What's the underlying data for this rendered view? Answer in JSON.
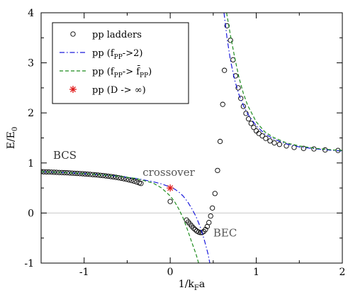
{
  "chart_data": {
    "type": "line",
    "xlabel": "1/k_Fa",
    "ylabel": "E/E_0",
    "xlim": [
      -1.5,
      2.0
    ],
    "ylim": [
      -1,
      4
    ],
    "xticks": [
      -1,
      0,
      1,
      2
    ],
    "xtick_labels": [
      "-1",
      "0",
      "1",
      "2"
    ],
    "yticks": [
      -1,
      0,
      1,
      2,
      3,
      4
    ],
    "ytick_labels": [
      "-1",
      "0",
      "1",
      "2",
      "3",
      "4"
    ],
    "zero_line": true,
    "legend_position": "top-left",
    "annotations": [
      {
        "text": "BCS",
        "x": -1.36,
        "y": 1.08,
        "color": "#333333"
      },
      {
        "text": "crossover",
        "x": -0.32,
        "y": 0.74,
        "color": "#555555"
      },
      {
        "text": "BEC",
        "x": 0.5,
        "y": -0.47,
        "color": "#555555"
      }
    ],
    "series": [
      {
        "name": "pp ladders",
        "legend_label": {
          "pre": "pp ladders",
          "sub": "",
          "post": ""
        },
        "style": "open-circles",
        "color": "#000000",
        "points": [
          [
            -1.5,
            0.826
          ],
          [
            -1.47,
            0.823
          ],
          [
            -1.44,
            0.821
          ],
          [
            -1.41,
            0.819
          ],
          [
            -1.38,
            0.817
          ],
          [
            -1.35,
            0.815
          ],
          [
            -1.32,
            0.813
          ],
          [
            -1.29,
            0.81
          ],
          [
            -1.26,
            0.808
          ],
          [
            -1.23,
            0.805
          ],
          [
            -1.2,
            0.803
          ],
          [
            -1.17,
            0.8
          ],
          [
            -1.14,
            0.797
          ],
          [
            -1.11,
            0.794
          ],
          [
            -1.08,
            0.791
          ],
          [
            -1.05,
            0.787
          ],
          [
            -1.02,
            0.784
          ],
          [
            -0.99,
            0.78
          ],
          [
            -0.96,
            0.776
          ],
          [
            -0.93,
            0.772
          ],
          [
            -0.9,
            0.767
          ],
          [
            -0.87,
            0.763
          ],
          [
            -0.84,
            0.758
          ],
          [
            -0.81,
            0.753
          ],
          [
            -0.78,
            0.747
          ],
          [
            -0.75,
            0.741
          ],
          [
            -0.72,
            0.735
          ],
          [
            -0.69,
            0.728
          ],
          [
            -0.66,
            0.72
          ],
          [
            -0.63,
            0.713
          ],
          [
            -0.6,
            0.704
          ],
          [
            -0.57,
            0.695
          ],
          [
            -0.54,
            0.685
          ],
          [
            -0.51,
            0.674
          ],
          [
            -0.48,
            0.662
          ],
          [
            -0.45,
            0.649
          ],
          [
            -0.42,
            0.635
          ],
          [
            -0.39,
            0.619
          ],
          [
            -0.36,
            0.602
          ],
          [
            -0.34,
            0.59
          ],
          [
            0.0,
            0.23
          ],
          [
            0.19,
            -0.14
          ],
          [
            0.21,
            -0.18
          ],
          [
            0.23,
            -0.22
          ],
          [
            0.25,
            -0.26
          ],
          [
            0.27,
            -0.3
          ],
          [
            0.29,
            -0.33
          ],
          [
            0.31,
            -0.36
          ],
          [
            0.33,
            -0.38
          ],
          [
            0.35,
            -0.39
          ],
          [
            0.37,
            -0.39
          ],
          [
            0.39,
            -0.37
          ],
          [
            0.41,
            -0.33
          ],
          [
            0.43,
            -0.27
          ],
          [
            0.45,
            -0.19
          ],
          [
            0.47,
            -0.06
          ],
          [
            0.49,
            0.1
          ],
          [
            0.52,
            0.39
          ],
          [
            0.55,
            0.85
          ],
          [
            0.58,
            1.43
          ],
          [
            0.61,
            2.17
          ],
          [
            0.63,
            2.85
          ],
          [
            0.66,
            3.74
          ],
          [
            0.7,
            3.45
          ],
          [
            0.73,
            3.06
          ],
          [
            0.76,
            2.74
          ],
          [
            0.79,
            2.5
          ],
          [
            0.82,
            2.29
          ],
          [
            0.85,
            2.13
          ],
          [
            0.88,
            1.99
          ],
          [
            0.91,
            1.88
          ],
          [
            0.94,
            1.79
          ],
          [
            0.97,
            1.71
          ],
          [
            1.0,
            1.64
          ],
          [
            1.03,
            1.59
          ],
          [
            1.07,
            1.54
          ],
          [
            1.11,
            1.49
          ],
          [
            1.16,
            1.44
          ],
          [
            1.21,
            1.4
          ],
          [
            1.27,
            1.37
          ],
          [
            1.35,
            1.34
          ],
          [
            1.44,
            1.31
          ],
          [
            1.55,
            1.29
          ],
          [
            1.67,
            1.28
          ],
          [
            1.8,
            1.26
          ],
          [
            1.95,
            1.25
          ]
        ]
      },
      {
        "name": "pp (f_PP->2)",
        "legend_label": {
          "pre": "pp (f",
          "sub": "PP",
          "post": "->2)"
        },
        "style": "dash-dot",
        "color": "#1a1adc",
        "segments": [
          [
            [
              -1.5,
              0.826
            ],
            [
              -1.2,
              0.806
            ],
            [
              -0.9,
              0.777
            ],
            [
              -0.6,
              0.735
            ],
            [
              -0.4,
              0.691
            ],
            [
              -0.2,
              0.626
            ],
            [
              -0.1,
              0.581
            ],
            [
              0.0,
              0.52
            ],
            [
              0.05,
              0.48
            ],
            [
              0.1,
              0.42
            ],
            [
              0.15,
              0.34
            ],
            [
              0.2,
              0.23
            ],
            [
              0.25,
              0.09
            ],
            [
              0.3,
              -0.07
            ],
            [
              0.35,
              -0.28
            ],
            [
              0.4,
              -0.56
            ],
            [
              0.44,
              -0.82
            ],
            [
              0.46,
              -1.0
            ]
          ],
          [
            [
              0.625,
              4.0
            ],
            [
              0.66,
              3.5
            ],
            [
              0.7,
              3.05
            ],
            [
              0.75,
              2.65
            ],
            [
              0.8,
              2.36
            ],
            [
              0.85,
              2.15
            ],
            [
              0.9,
              1.98
            ],
            [
              1.0,
              1.74
            ],
            [
              1.1,
              1.58
            ],
            [
              1.2,
              1.48
            ],
            [
              1.35,
              1.38
            ],
            [
              1.5,
              1.32
            ],
            [
              1.7,
              1.28
            ],
            [
              1.9,
              1.25
            ],
            [
              2.0,
              1.24
            ]
          ]
        ]
      },
      {
        "name": "pp (f_PP-> f̄_PP)",
        "legend_label": {
          "pre": "pp (f",
          "sub": "PP",
          "post": "-> f̄",
          "sub2": "PP",
          "post2": ")"
        },
        "style": "dashed",
        "color": "#1e8c1e",
        "segments": [
          [
            [
              -1.5,
              0.826
            ],
            [
              -1.2,
              0.806
            ],
            [
              -0.9,
              0.777
            ],
            [
              -0.6,
              0.735
            ],
            [
              -0.4,
              0.691
            ],
            [
              -0.2,
              0.6
            ],
            [
              -0.1,
              0.5
            ],
            [
              0.0,
              0.34
            ],
            [
              0.05,
              0.23
            ],
            [
              0.1,
              0.08
            ],
            [
              0.15,
              -0.1
            ],
            [
              0.2,
              -0.33
            ],
            [
              0.25,
              -0.58
            ],
            [
              0.3,
              -0.82
            ],
            [
              0.33,
              -1.0
            ]
          ],
          [
            [
              0.655,
              4.0
            ],
            [
              0.7,
              3.55
            ],
            [
              0.75,
              3.1
            ],
            [
              0.8,
              2.7
            ],
            [
              0.85,
              2.39
            ],
            [
              0.9,
              2.15
            ],
            [
              1.0,
              1.82
            ],
            [
              1.1,
              1.62
            ],
            [
              1.2,
              1.51
            ],
            [
              1.35,
              1.4
            ],
            [
              1.5,
              1.34
            ],
            [
              1.7,
              1.29
            ],
            [
              1.9,
              1.26
            ],
            [
              2.0,
              1.25
            ]
          ]
        ]
      },
      {
        "name": "pp (D -> ∞)",
        "legend_label": {
          "pre": "pp (D -> ∞)",
          "sub": "",
          "post": ""
        },
        "style": "asterisk",
        "color": "#e01919",
        "points": [
          [
            0.0,
            0.5
          ]
        ]
      }
    ]
  }
}
